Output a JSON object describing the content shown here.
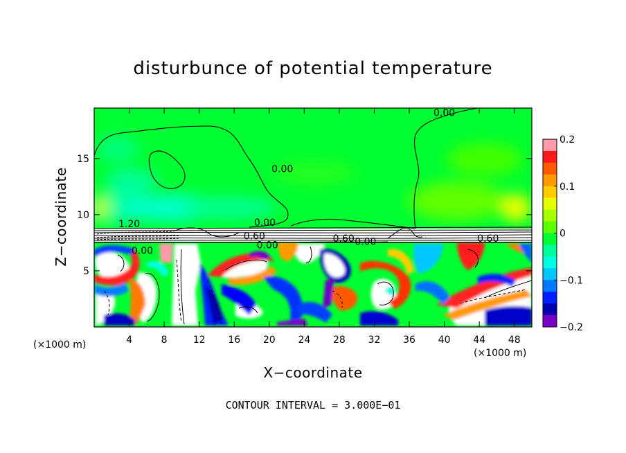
{
  "chart_data": {
    "type": "heatmap",
    "title": "disturbunce of potential temperature",
    "xlabel": "X−coordinate",
    "ylabel": "Z−coordinate",
    "x_unit_left": "(×1000 m)",
    "x_unit_right": "(×1000 m)",
    "footer": "CONTOUR INTERVAL = 3.000E−01",
    "xlim": [
      0,
      50
    ],
    "ylim": [
      0,
      19.5
    ],
    "x_ticks": [
      "4",
      "8",
      "12",
      "16",
      "20",
      "24",
      "28",
      "32",
      "36",
      "40",
      "44",
      "48"
    ],
    "x_tick_values": [
      4,
      8,
      12,
      16,
      20,
      24,
      28,
      32,
      36,
      40,
      44,
      48
    ],
    "y_ticks": [
      "5",
      "10",
      "15"
    ],
    "y_tick_values": [
      5,
      10,
      15
    ],
    "colorbar": {
      "range": [
        -0.2,
        0.2
      ],
      "tick_labels": [
        "0.2",
        "0.1",
        "0",
        "−0.1",
        "−0.2"
      ],
      "tick_values": [
        0.2,
        0.1,
        0,
        -0.1,
        -0.2
      ],
      "colors": [
        "#ff9aa8",
        "#ff1a1a",
        "#ff5a00",
        "#ff9a00",
        "#ffcc00",
        "#e8ff00",
        "#a8ff00",
        "#5cff00",
        "#00ff30",
        "#00ff9a",
        "#00ffe0",
        "#00c8ff",
        "#0078ff",
        "#0020ff",
        "#0000b0",
        "#7800c8"
      ]
    },
    "contour_labels": [
      {
        "text": "0.00",
        "x": 21.5,
        "y": 13.8
      },
      {
        "text": "0.00",
        "x": 40.0,
        "y": 18.8
      },
      {
        "text": "1.20",
        "x": 4.0,
        "y": 8.9
      },
      {
        "text": "0.00",
        "x": 19.5,
        "y": 9.0
      },
      {
        "text": "0.60",
        "x": 18.3,
        "y": 7.8
      },
      {
        "text": "0.00",
        "x": 19.8,
        "y": 7.0
      },
      {
        "text": "0.60",
        "x": 28.5,
        "y": 7.6
      },
      {
        "text": "0.00",
        "x": 31.0,
        "y": 7.3
      },
      {
        "text": "0.60",
        "x": 45.0,
        "y": 7.6
      },
      {
        "text": "0.00",
        "x": 5.5,
        "y": 6.5
      }
    ],
    "grid": false,
    "legend": "colorbar-right"
  }
}
